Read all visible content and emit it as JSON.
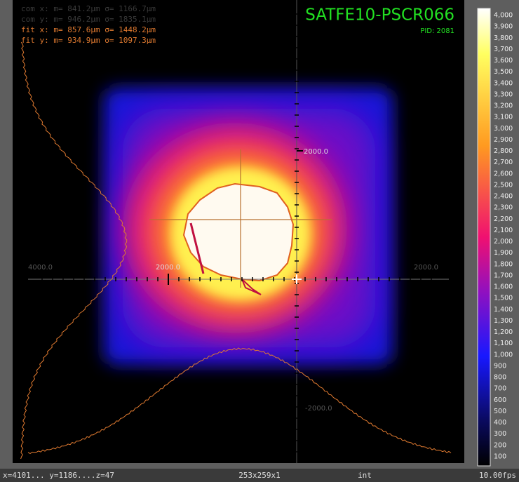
{
  "overlay": {
    "stats": [
      "com x: m=  841.2µm σ= 1166.7µm",
      "com y: m=  946.2µm σ= 1835.1µm",
      "fit x: m=  857.6µm σ= 1448.2µm",
      "fit y: m=  934.9µm σ= 1097.3µm"
    ],
    "camera": "SATFE10-PSCR066",
    "pid": "PID: 2081",
    "axis_labels": [
      "2000.0",
      "2000.0",
      "4000.0",
      "2000.0",
      "-2000.0"
    ]
  },
  "colorbar": {
    "labels": [
      "4,000",
      "3,900",
      "3,800",
      "3,700",
      "3,600",
      "3,500",
      "3,400",
      "3,300",
      "3,200",
      "3,100",
      "3,000",
      "2,900",
      "2,800",
      "2,700",
      "2,600",
      "2,500",
      "2,400",
      "2,300",
      "2,200",
      "2,100",
      "2,000",
      "1,900",
      "1,800",
      "1,700",
      "1,600",
      "1,500",
      "1,400",
      "1,300",
      "1,200",
      "1,100",
      "1,000",
      "900",
      "800",
      "700",
      "600",
      "500",
      "400",
      "300",
      "200",
      "100"
    ]
  },
  "status_bar": {
    "cursor": "x=4101... y=1186....z=47",
    "size": "253x259x1",
    "type": "int",
    "rate": "10.00fps"
  }
}
